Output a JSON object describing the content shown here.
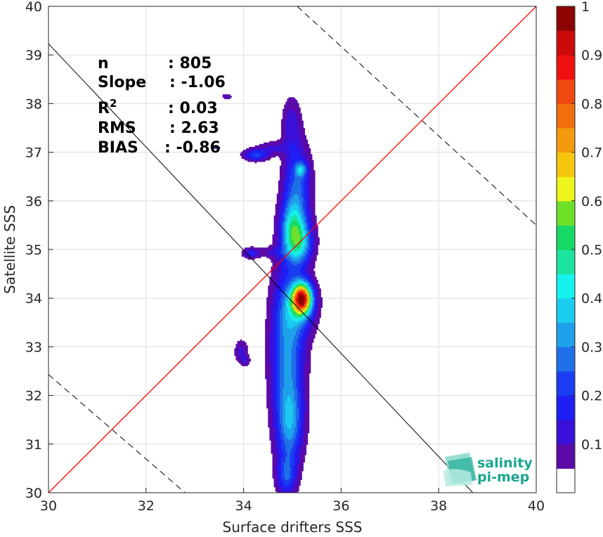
{
  "chart_data": {
    "type": "heatmap",
    "subtype": "density-contour",
    "xlabel": "Surface drifters SSS",
    "ylabel": "Satellite SSS",
    "xlim": [
      30,
      40
    ],
    "ylim": [
      30,
      40
    ],
    "xticks": [
      "30",
      "32",
      "34",
      "36",
      "38",
      "40"
    ],
    "yticks": [
      "30",
      "31",
      "32",
      "33",
      "34",
      "35",
      "36",
      "37",
      "38",
      "39",
      "40"
    ],
    "grid": true,
    "stats": [
      {
        "key": "n",
        "value": ": 805"
      },
      {
        "key": "Slope",
        "value": ": -1.06"
      },
      {
        "key": "R2",
        "value": ": 0.03"
      },
      {
        "key": "RMS",
        "value": ": 2.63"
      },
      {
        "key": "BIAS",
        "value": ": -0.86"
      }
    ],
    "lines": {
      "identity": {
        "color": "#ff0000",
        "points": [
          [
            30,
            30
          ],
          [
            40,
            40
          ]
        ]
      },
      "regression": {
        "color": "#000000",
        "points": [
          [
            30,
            39.23
          ],
          [
            38.7,
            30
          ]
        ]
      },
      "rms_bounds": [
        {
          "color": "#000000",
          "dash": true,
          "points": [
            [
              30,
              32.43
            ],
            [
              32.8,
              30
            ]
          ]
        },
        {
          "color": "#000000",
          "dash": true,
          "points": [
            [
              35.1,
              40
            ],
            [
              40,
              35.5
            ]
          ]
        }
      ]
    },
    "colorbar": {
      "range": [
        0,
        1
      ],
      "ticks": [
        "0.1",
        "0.2",
        "0.3",
        "0.4",
        "0.5",
        "0.6",
        "0.7",
        "0.8",
        "0.9",
        "1"
      ],
      "levels": [
        {
          "from": 0.0,
          "to": 0.05,
          "color": "#ffffff"
        },
        {
          "from": 0.05,
          "to": 0.1,
          "color": "#5b0aa8"
        },
        {
          "from": 0.1,
          "to": 0.15,
          "color": "#3a10d8"
        },
        {
          "from": 0.15,
          "to": 0.2,
          "color": "#1e1ef5"
        },
        {
          "from": 0.2,
          "to": 0.25,
          "color": "#1a3df2"
        },
        {
          "from": 0.25,
          "to": 0.3,
          "color": "#1f6fe8"
        },
        {
          "from": 0.3,
          "to": 0.35,
          "color": "#1fa0ea"
        },
        {
          "from": 0.35,
          "to": 0.4,
          "color": "#1bcbf0"
        },
        {
          "from": 0.4,
          "to": 0.45,
          "color": "#16f2ee"
        },
        {
          "from": 0.45,
          "to": 0.5,
          "color": "#1de3a0"
        },
        {
          "from": 0.5,
          "to": 0.55,
          "color": "#16d966"
        },
        {
          "from": 0.55,
          "to": 0.6,
          "color": "#6fe02a"
        },
        {
          "from": 0.6,
          "to": 0.65,
          "color": "#eef51a"
        },
        {
          "from": 0.65,
          "to": 0.7,
          "color": "#f5c60e"
        },
        {
          "from": 0.7,
          "to": 0.75,
          "color": "#f39a0e"
        },
        {
          "from": 0.75,
          "to": 0.8,
          "color": "#f0700e"
        },
        {
          "from": 0.8,
          "to": 0.85,
          "color": "#ef4a10"
        },
        {
          "from": 0.85,
          "to": 0.9,
          "color": "#f01010"
        },
        {
          "from": 0.9,
          "to": 0.95,
          "color": "#cc0a0a"
        },
        {
          "from": 0.95,
          "to": 1.0,
          "color": "#8c0505"
        }
      ]
    },
    "density_blobs": [
      {
        "x": 34.9,
        "y": 32.9,
        "sx": 0.24,
        "sy": 1.25,
        "w": 0.3
      },
      {
        "x": 34.95,
        "y": 31.4,
        "sx": 0.18,
        "sy": 0.55,
        "w": 0.22
      },
      {
        "x": 34.88,
        "y": 30.35,
        "sx": 0.14,
        "sy": 0.3,
        "w": 0.2
      },
      {
        "x": 35.2,
        "y": 34.0,
        "sx": 0.14,
        "sy": 0.22,
        "w": 0.78
      },
      {
        "x": 35.15,
        "y": 33.8,
        "sx": 0.25,
        "sy": 0.4,
        "w": 0.18
      },
      {
        "x": 35.12,
        "y": 35.15,
        "sx": 0.2,
        "sy": 0.32,
        "w": 0.38
      },
      {
        "x": 35.0,
        "y": 35.55,
        "sx": 0.17,
        "sy": 0.35,
        "w": 0.24
      },
      {
        "x": 35.1,
        "y": 36.3,
        "sx": 0.2,
        "sy": 0.6,
        "w": 0.25
      },
      {
        "x": 35.18,
        "y": 36.65,
        "sx": 0.08,
        "sy": 0.1,
        "w": 0.22
      },
      {
        "x": 34.98,
        "y": 37.6,
        "sx": 0.14,
        "sy": 0.4,
        "w": 0.12
      },
      {
        "x": 34.25,
        "y": 36.95,
        "sx": 0.18,
        "sy": 0.09,
        "w": 0.22
      },
      {
        "x": 34.15,
        "y": 34.93,
        "sx": 0.13,
        "sy": 0.08,
        "w": 0.16
      },
      {
        "x": 33.95,
        "y": 32.9,
        "sx": 0.1,
        "sy": 0.18,
        "w": 0.12
      },
      {
        "x": 34.05,
        "y": 32.72,
        "sx": 0.06,
        "sy": 0.07,
        "w": 0.08
      },
      {
        "x": 33.65,
        "y": 38.15,
        "sx": 0.07,
        "sy": 0.04,
        "w": 0.11
      },
      {
        "x": 33.45,
        "y": 37.1,
        "sx": 0.05,
        "sy": 0.03,
        "w": 0.08
      },
      {
        "x": 34.6,
        "y": 37.1,
        "sx": 0.2,
        "sy": 0.1,
        "w": 0.1
      },
      {
        "x": 34.6,
        "y": 34.95,
        "sx": 0.2,
        "sy": 0.08,
        "w": 0.08
      }
    ]
  },
  "logo": {
    "line1": "salinity",
    "line2": "pi-mep"
  }
}
